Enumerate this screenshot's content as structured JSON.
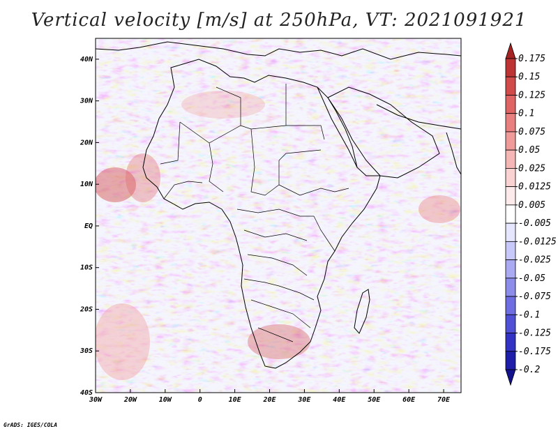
{
  "title": "Vertical velocity [m/s] at 250hPa, VT: 2021091921",
  "credit": "GrADS: IGES/COLA",
  "map": {
    "region": "Africa",
    "lon_range": [
      -30,
      75
    ],
    "lat_range": [
      -40,
      45
    ],
    "x_ticks": [
      "30W",
      "20W",
      "10W",
      "0",
      "10E",
      "20E",
      "30E",
      "40E",
      "50E",
      "60E",
      "70E"
    ],
    "x_tick_values": [
      -30,
      -20,
      -10,
      0,
      10,
      20,
      30,
      40,
      50,
      60,
      70
    ],
    "y_ticks": [
      "40N",
      "30N",
      "20N",
      "10N",
      "EQ",
      "10S",
      "20S",
      "30S",
      "40S"
    ],
    "y_tick_values": [
      40,
      30,
      20,
      10,
      0,
      -10,
      -20,
      -30,
      -40
    ]
  },
  "colorbar": {
    "labels": [
      "0.175",
      "0.15",
      "0.125",
      "0.1",
      "0.075",
      "0.05",
      "0.025",
      "0.0125",
      "0.005",
      "-0.005",
      "-0.0125",
      "-0.025",
      "-0.05",
      "-0.075",
      "-0.1",
      "-0.125",
      "-0.175",
      "-0.2"
    ],
    "colors": [
      "#a52323",
      "#be3434",
      "#d24b4b",
      "#e06464",
      "#e97f7f",
      "#f09a9a",
      "#f5b6b6",
      "#fad2d2",
      "#fdeaea",
      "#ffffff",
      "#e6e6ff",
      "#c8c8fa",
      "#aaaaf2",
      "#8c8ceb",
      "#6e6ee2",
      "#5050d6",
      "#3232c4",
      "#1e1eaa",
      "#12128c"
    ]
  }
}
